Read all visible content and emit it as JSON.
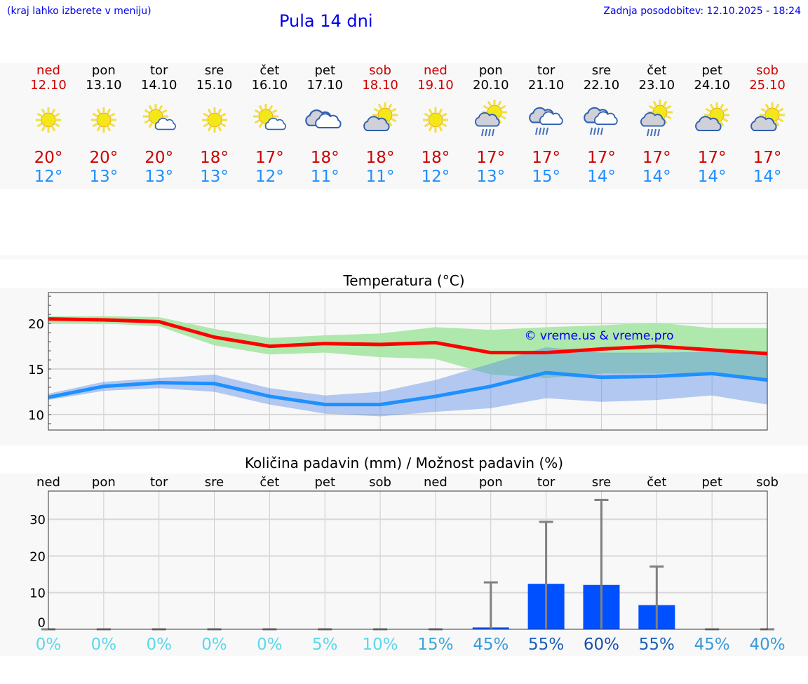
{
  "header": {
    "hint": "(kraj lahko izberete v meniju)",
    "title": "Pula 14 dni",
    "updated": "Zadnja posodobitev: 12.10.2025 - 18:24"
  },
  "days": [
    {
      "name": "ned",
      "date": "12.10",
      "icon": "sun",
      "max": "20°",
      "min": "12°",
      "weekend": true
    },
    {
      "name": "pon",
      "date": "13.10",
      "icon": "sun",
      "max": "20°",
      "min": "13°",
      "weekend": false
    },
    {
      "name": "tor",
      "date": "14.10",
      "icon": "sun-small-cloud",
      "max": "20°",
      "min": "13°",
      "weekend": false
    },
    {
      "name": "sre",
      "date": "15.10",
      "icon": "sun",
      "max": "18°",
      "min": "13°",
      "weekend": false
    },
    {
      "name": "čet",
      "date": "16.10",
      "icon": "sun-small-cloud",
      "max": "17°",
      "min": "12°",
      "weekend": false
    },
    {
      "name": "pet",
      "date": "17.10",
      "icon": "clouds",
      "max": "18°",
      "min": "11°",
      "weekend": false
    },
    {
      "name": "sob",
      "date": "18.10",
      "icon": "cloud-sun",
      "max": "18°",
      "min": "11°",
      "weekend": true
    },
    {
      "name": "ned",
      "date": "19.10",
      "icon": "sun",
      "max": "18°",
      "min": "12°",
      "weekend": true
    },
    {
      "name": "pon",
      "date": "20.10",
      "icon": "sun-rain",
      "max": "17°",
      "min": "13°",
      "weekend": false
    },
    {
      "name": "tor",
      "date": "21.10",
      "icon": "cloud-rain",
      "max": "17°",
      "min": "15°",
      "weekend": false
    },
    {
      "name": "sre",
      "date": "22.10",
      "icon": "cloud-rain",
      "max": "17°",
      "min": "14°",
      "weekend": false
    },
    {
      "name": "čet",
      "date": "23.10",
      "icon": "sun-rain",
      "max": "17°",
      "min": "14°",
      "weekend": false
    },
    {
      "name": "pet",
      "date": "24.10",
      "icon": "cloud-sun",
      "max": "17°",
      "min": "14°",
      "weekend": false
    },
    {
      "name": "sob",
      "date": "25.10",
      "icon": "cloud-sun",
      "max": "17°",
      "min": "14°",
      "weekend": true
    }
  ],
  "colors": {
    "weekend": "#cc0000",
    "weekday": "#000000",
    "max": "#ff0000",
    "min": "#1e90ff",
    "max_band": "#aee8ac",
    "min_band": "#aec6f2",
    "bar": "#0050ff",
    "err": "#808080"
  },
  "chart_data": [
    {
      "type": "line",
      "title": "Temperatura (°C)",
      "ylim": [
        8.3,
        23.4
      ],
      "yticks": [
        10,
        15,
        20
      ],
      "grid": true,
      "watermark": "© vreme.us & vreme.pro",
      "x": [
        "12.10",
        "13.10",
        "14.10",
        "15.10",
        "16.10",
        "17.10",
        "18.10",
        "19.10",
        "20.10",
        "21.10",
        "22.10",
        "23.10",
        "24.10",
        "25.10"
      ],
      "series": [
        {
          "name": "max",
          "values": [
            20.5,
            20.4,
            20.2,
            18.5,
            17.5,
            17.8,
            17.7,
            17.9,
            16.8,
            16.8,
            17.2,
            17.5,
            17.1,
            16.7
          ],
          "band_upper": [
            20.8,
            20.8,
            20.7,
            19.4,
            18.4,
            18.7,
            18.9,
            19.6,
            19.3,
            19.6,
            19.8,
            20.1,
            19.5,
            19.5
          ],
          "band_lower": [
            20.1,
            20.0,
            19.7,
            17.6,
            16.6,
            16.8,
            16.3,
            16.1,
            14.4,
            14.0,
            14.5,
            14.5,
            14.5,
            13.9
          ]
        },
        {
          "name": "min",
          "values": [
            11.9,
            13.1,
            13.5,
            13.4,
            12.0,
            11.1,
            11.1,
            12.0,
            13.1,
            14.6,
            14.1,
            14.2,
            14.5,
            13.8
          ],
          "band_upper": [
            12.3,
            13.6,
            14.0,
            14.4,
            12.9,
            12.1,
            12.5,
            13.8,
            15.6,
            17.4,
            16.8,
            16.8,
            16.9,
            16.8
          ],
          "band_lower": [
            11.6,
            12.6,
            12.9,
            12.5,
            11.1,
            10.1,
            9.8,
            10.3,
            10.7,
            11.8,
            11.4,
            11.6,
            12.1,
            11.1
          ]
        }
      ]
    },
    {
      "type": "bar",
      "title": "Količina padavin (mm) / Možnost padavin (%)",
      "ylim": [
        0,
        37.7
      ],
      "yticks": [
        0,
        10,
        20,
        30
      ],
      "grid": true,
      "categories": [
        "ned",
        "pon",
        "tor",
        "sre",
        "čet",
        "pet",
        "sob",
        "ned",
        "pon",
        "tor",
        "sre",
        "čet",
        "pet",
        "sob"
      ],
      "values": [
        0,
        0,
        0,
        0,
        0,
        0,
        0,
        0,
        0.5,
        12.4,
        12.1,
        6.6,
        0,
        0
      ],
      "error_upper": [
        0,
        0,
        0,
        0,
        0,
        0,
        0,
        0,
        12.8,
        29.3,
        35.3,
        17.1,
        0,
        0
      ],
      "probability": [
        "0%",
        "0%",
        "0%",
        "0%",
        "0%",
        "5%",
        "10%",
        "15%",
        "45%",
        "55%",
        "60%",
        "55%",
        "45%",
        "40%"
      ],
      "probability_colors": [
        "#5ad8e8",
        "#5ad8e8",
        "#5ad8e8",
        "#5ad8e8",
        "#5ad8e8",
        "#5ad8e8",
        "#5ad8e8",
        "#3aa8d8",
        "#3a9ad8",
        "#1a5fb8",
        "#1850a8",
        "#1a5fb8",
        "#3a9ad8",
        "#3a9ad8"
      ]
    }
  ]
}
